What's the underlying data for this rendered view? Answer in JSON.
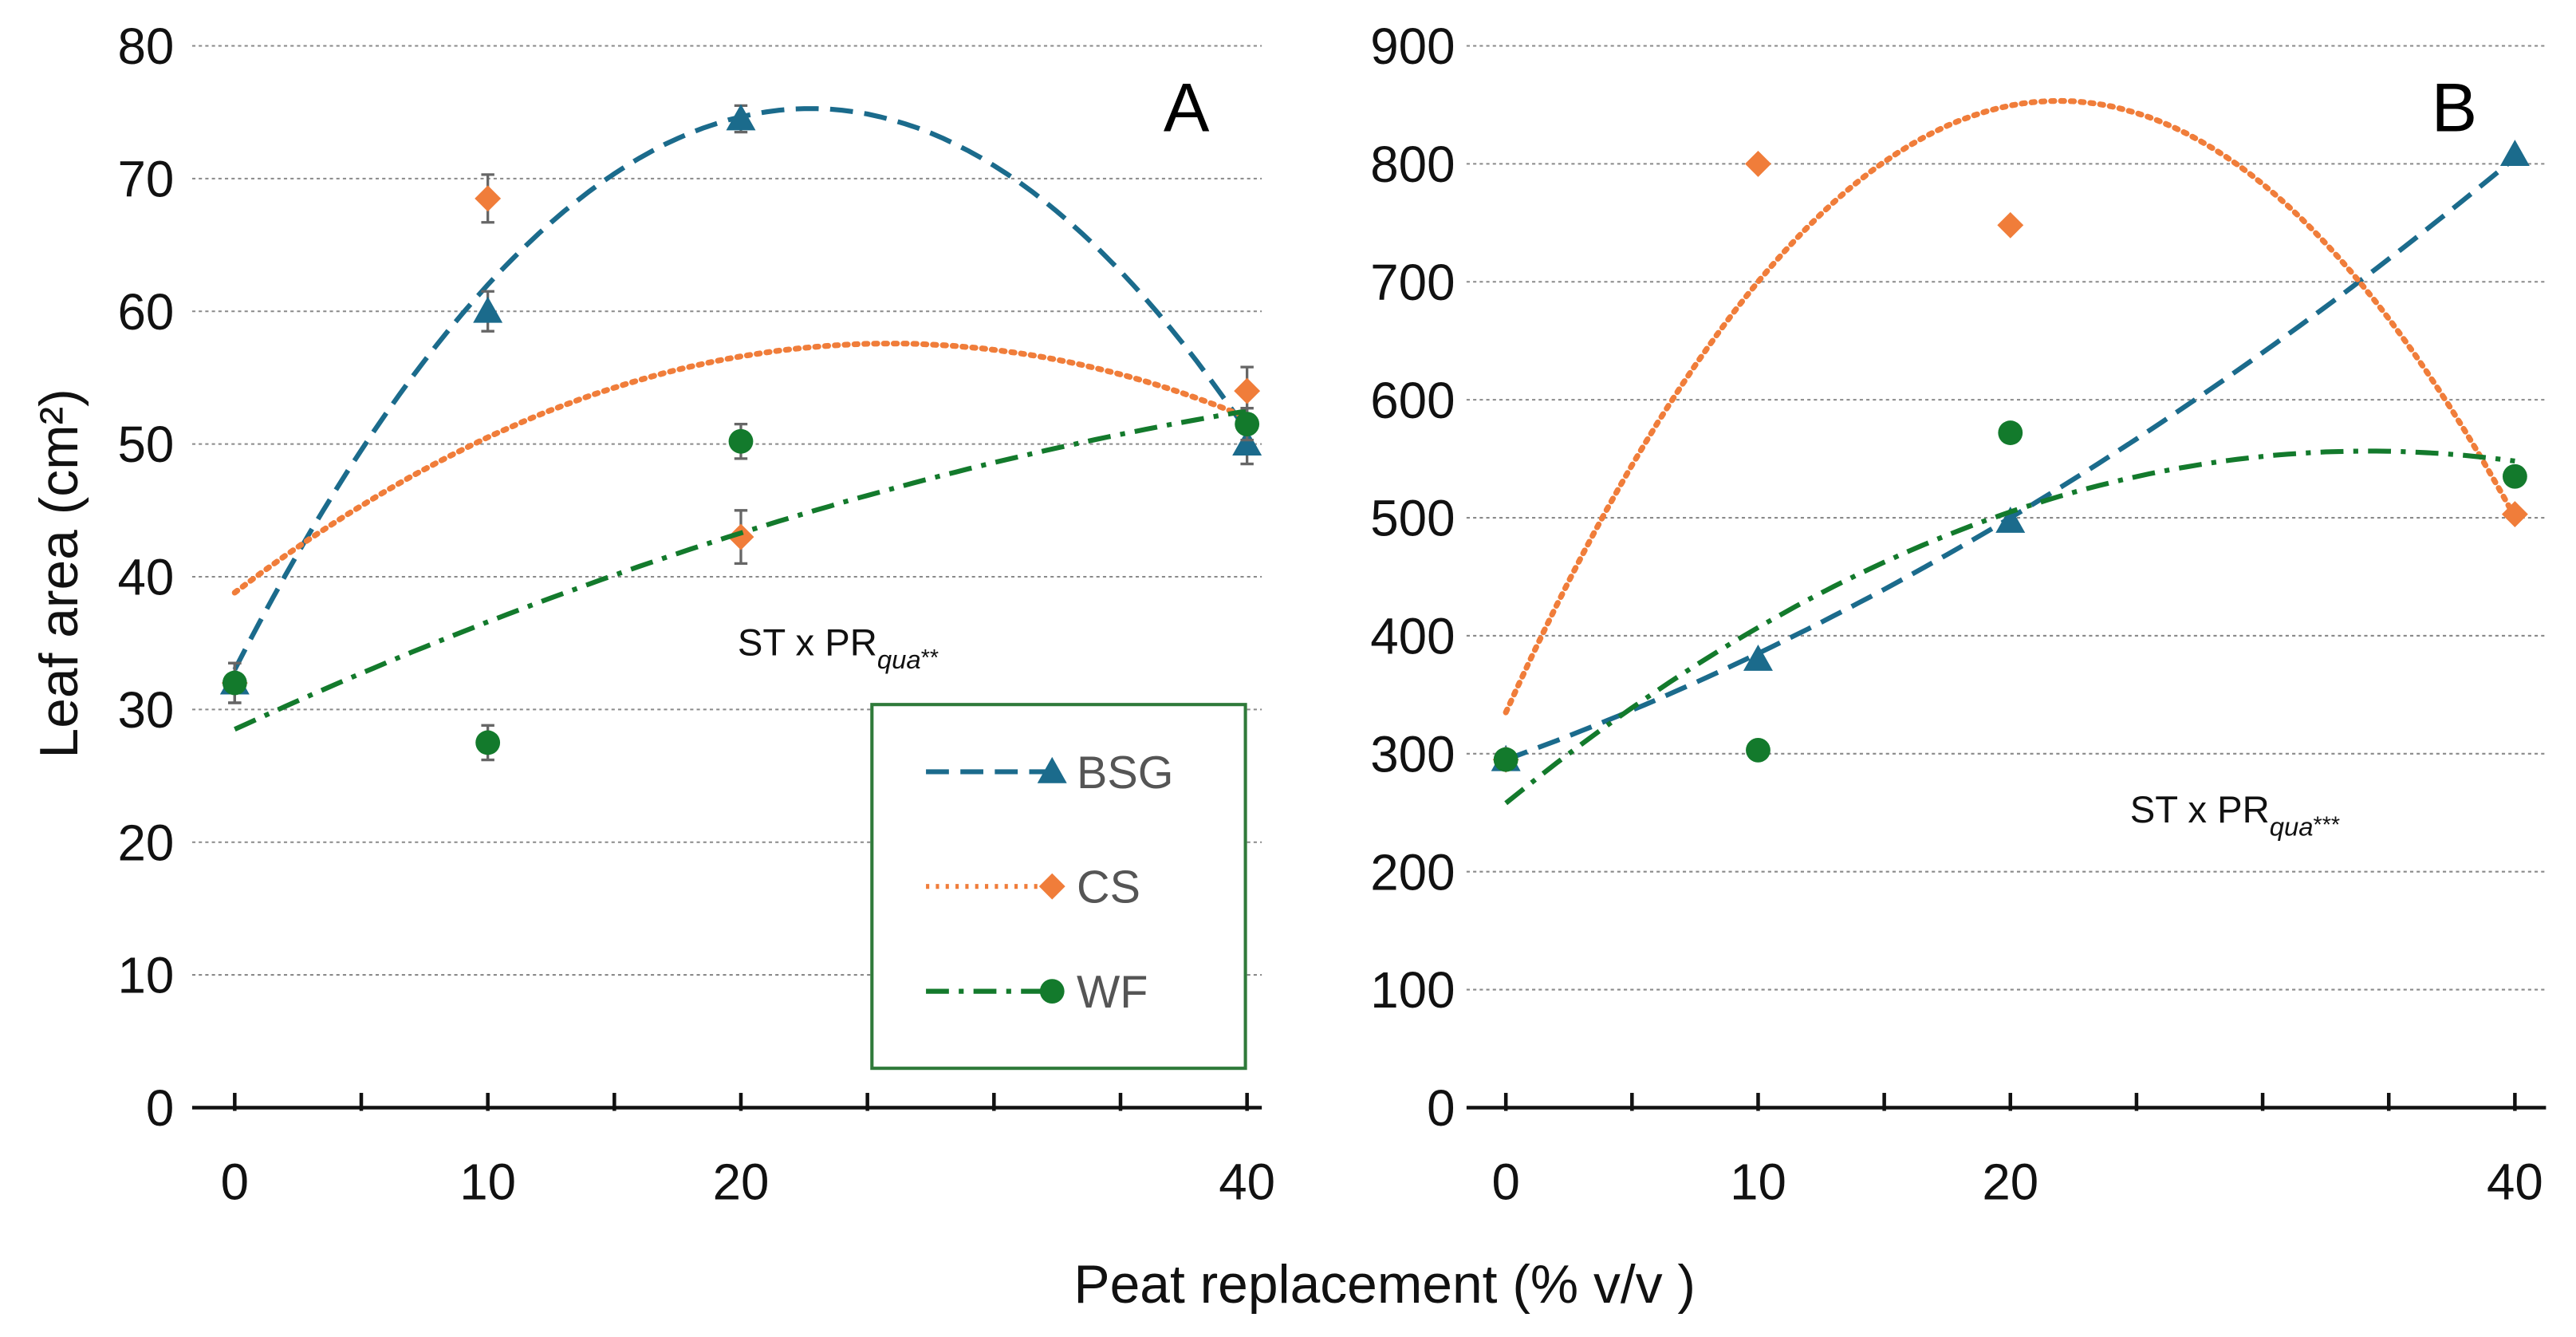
{
  "colors": {
    "BSG": "#1b6b8c",
    "CS": "#f07d3a",
    "WF": "#137a2c",
    "legend_border": "#2f7a3a",
    "errorbar": "#666666"
  },
  "xlabel": "Peat replacement (% v/v )",
  "ylabel": "Leaf area (cm²)",
  "chart_data": [
    {
      "type": "scatter",
      "panel": "A",
      "annotation": {
        "main": "ST x PR",
        "sub": "qua",
        "sig": "**"
      },
      "xlim": [
        0,
        40
      ],
      "xticks": [
        0,
        10,
        20,
        40
      ],
      "minor_xticks": [
        0,
        5,
        10,
        15,
        20,
        25,
        30,
        35,
        40
      ],
      "ylim": [
        0,
        80
      ],
      "yticks": [
        0,
        10,
        20,
        30,
        40,
        50,
        60,
        70,
        80
      ],
      "grid": true,
      "legend": {
        "placement": "lower-right",
        "entries": [
          "BSG",
          "CS",
          "WF"
        ]
      },
      "series": [
        {
          "name": "BSG",
          "marker": "triangle",
          "line": "dashed",
          "x": [
            0,
            10,
            20,
            40
          ],
          "y": [
            32,
            60,
            74.5,
            50
          ],
          "err": [
            1.5,
            1.5,
            1,
            1.5
          ],
          "trend_quadratic": [
            33,
            3.717,
            -0.0817
          ]
        },
        {
          "name": "CS",
          "marker": "diamond",
          "line": "dotted",
          "x": [
            0,
            10,
            20,
            40
          ],
          "y": [
            32,
            68.5,
            43,
            54
          ],
          "err": [
            1.5,
            1.8,
            2,
            1.8
          ],
          "trend_quadratic": [
            38.8,
            1.45,
            -0.028
          ]
        },
        {
          "name": "WF",
          "marker": "circle",
          "line": "dashdot",
          "x": [
            0,
            10,
            20,
            40
          ],
          "y": [
            32,
            27.5,
            50.2,
            51.5
          ],
          "err": [
            1.5,
            1.3,
            1.3,
            1.2
          ],
          "trend_quadratic": [
            28.5,
            0.88,
            -0.007
          ]
        }
      ]
    },
    {
      "type": "scatter",
      "panel": "B",
      "annotation": {
        "main": "ST x PR",
        "sub": "qua",
        "sig": "***"
      },
      "xlim": [
        0,
        40
      ],
      "xticks": [
        0,
        10,
        20,
        40
      ],
      "minor_xticks": [
        0,
        5,
        10,
        15,
        20,
        25,
        30,
        35,
        40
      ],
      "ylim": [
        0,
        900
      ],
      "yticks": [
        0,
        100,
        200,
        300,
        400,
        500,
        600,
        700,
        800,
        900
      ],
      "grid": true,
      "series": [
        {
          "name": "BSG",
          "marker": "triangle",
          "line": "dashed",
          "x": [
            0,
            10,
            20,
            40
          ],
          "y": [
            295,
            380,
            497,
            808
          ],
          "trend_quadratic": [
            295,
            7.75,
            0.125
          ]
        },
        {
          "name": "CS",
          "marker": "diamond",
          "line": "dotted",
          "x": [
            0,
            10,
            20,
            40
          ],
          "y": [
            295,
            800,
            748,
            503
          ],
          "trend_quadratic": [
            335,
            47.3,
            -1.079
          ]
        },
        {
          "name": "WF",
          "marker": "circle",
          "line": "dashdot",
          "x": [
            0,
            10,
            20,
            40
          ],
          "y": [
            295,
            303,
            572,
            535
          ],
          "trend_quadratic": [
            258,
            17.45,
            -0.255
          ]
        }
      ]
    }
  ]
}
